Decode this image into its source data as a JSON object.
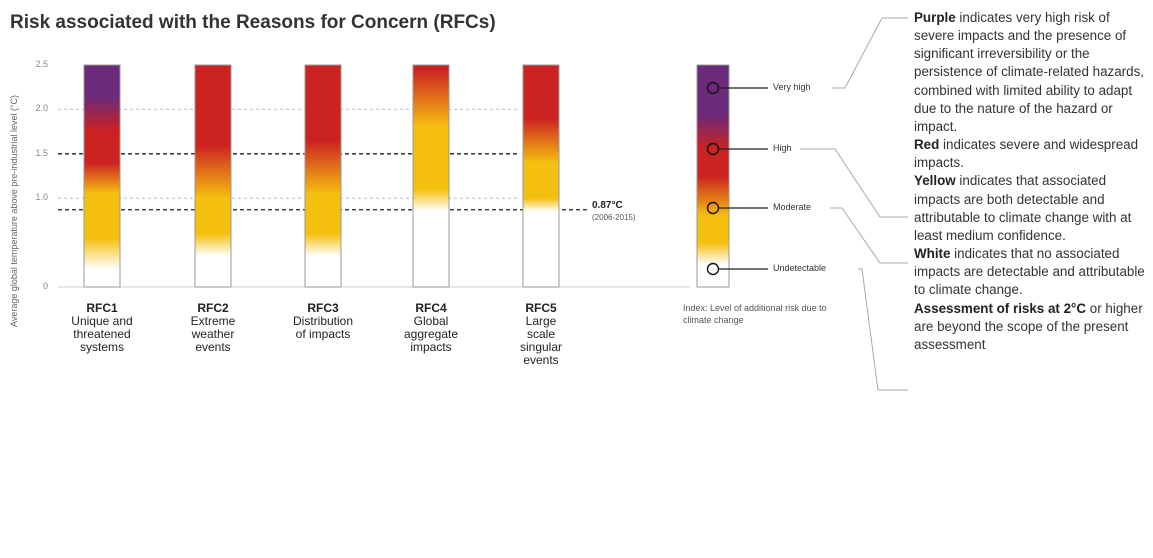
{
  "chart_data": {
    "type": "bar",
    "title": "Risk associated with the Reasons for Concern (RFCs)",
    "ylabel": "Average global temperature above pre-industrial level (°C)",
    "yticks": [
      "0",
      "1.0",
      "1.5",
      "2.0",
      "2.5"
    ],
    "ylim": [
      0,
      2.5
    ],
    "categories": [
      {
        "code": "RFC1",
        "label": "Unique and threatened systems",
        "lines": [
          "Unique and",
          "threatened",
          "systems"
        ]
      },
      {
        "code": "RFC2",
        "label": "Extreme weather events",
        "lines": [
          "Extreme",
          "weather",
          "events"
        ]
      },
      {
        "code": "RFC3",
        "label": "Distribution of impacts",
        "lines": [
          "Distribution",
          "of impacts"
        ]
      },
      {
        "code": "RFC4",
        "label": "Global aggregate impacts",
        "lines": [
          "Global",
          "aggregate",
          "impacts"
        ]
      },
      {
        "code": "RFC5",
        "label": "Large scale singular events",
        "lines": [
          "Large",
          "scale",
          "singular",
          "events"
        ]
      }
    ],
    "risk_transitions": [
      {
        "rfc": "RFC1",
        "stops": [
          {
            "t": 0.2,
            "level": "Undetectable"
          },
          {
            "t": 0.55,
            "level": "Moderate"
          },
          {
            "t": 1.05,
            "level": "Moderate"
          },
          {
            "t": 1.4,
            "level": "High"
          },
          {
            "t": 1.75,
            "level": "High"
          },
          {
            "t": 2.15,
            "level": "Very high"
          }
        ]
      },
      {
        "rfc": "RFC2",
        "stops": [
          {
            "t": 0.35,
            "level": "Undetectable"
          },
          {
            "t": 0.6,
            "level": "Moderate"
          },
          {
            "t": 1.0,
            "level": "Moderate"
          },
          {
            "t": 1.6,
            "level": "High"
          }
        ]
      },
      {
        "rfc": "RFC3",
        "stops": [
          {
            "t": 0.35,
            "level": "Undetectable"
          },
          {
            "t": 0.6,
            "level": "Moderate"
          },
          {
            "t": 1.05,
            "level": "Moderate"
          },
          {
            "t": 1.65,
            "level": "High"
          }
        ]
      },
      {
        "rfc": "RFC4",
        "stops": [
          {
            "t": 0.85,
            "level": "Undetectable"
          },
          {
            "t": 1.1,
            "level": "Moderate"
          },
          {
            "t": 1.8,
            "level": "Moderate"
          },
          {
            "t": 2.45,
            "level": "High"
          }
        ]
      },
      {
        "rfc": "RFC5",
        "stops": [
          {
            "t": 0.85,
            "level": "Undetectable"
          },
          {
            "t": 1.0,
            "level": "Moderate"
          },
          {
            "t": 1.4,
            "level": "Moderate"
          },
          {
            "t": 1.9,
            "level": "High"
          }
        ]
      }
    ],
    "reference_lines": [
      {
        "value": 0.87,
        "style": "dashed",
        "label": "0.87°C",
        "sublabel": "(2006-2015)"
      },
      {
        "value": 1.5,
        "style": "dashed"
      },
      {
        "value": 2.0,
        "style": "dotted-light"
      },
      {
        "value": 1.0,
        "style": "dotted-light"
      }
    ],
    "legend": {
      "levels": [
        {
          "name": "Very high",
          "color": "#6b2a7a"
        },
        {
          "name": "High",
          "color": "#cc2222"
        },
        {
          "name": "Moderate",
          "color": "#f5bf10"
        },
        {
          "name": "Undetectable",
          "color": "#ffffff"
        }
      ],
      "caption": "Index: Level of additional risk due to climate change"
    },
    "colors": {
      "very_high": "#6b2a7a",
      "high": "#cc2222",
      "moderate": "#f5bf10",
      "undetectable": "#ffffff"
    },
    "grid": false
  },
  "description": {
    "purple_head": "Purple",
    "purple_text": " indicates very high risk of severe impacts and the presence of significant irreversibility or the persistence of climate-related hazards, combined with limited ability to adapt due to the nature of the hazard or impact.",
    "red_head": "Red",
    "red_text": " indicates severe and widespread impacts.",
    "yellow_head": "Yellow",
    "yellow_text": " indicates that associated impacts are both detectable and attributable to climate change with at least medium confidence.",
    "white_head": "White",
    "white_text": " indicates that no associated impacts are detectable and attributable to climate change.",
    "assess_head": "Assessment of risks at 2°C",
    "assess_text": " or higher are beyond the scope of the present assessment"
  }
}
